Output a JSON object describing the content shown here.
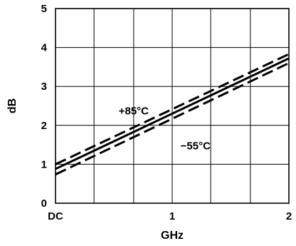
{
  "chart_data": {
    "type": "line",
    "xlabel": "GHz",
    "ylabel": "dB",
    "xlim": [
      0,
      2
    ],
    "ylim": [
      0,
      5
    ],
    "x_ticks": [
      {
        "value": 0,
        "label": "DC"
      },
      {
        "value": 1,
        "label": "1"
      },
      {
        "value": 2,
        "label": "2"
      }
    ],
    "y_ticks": [
      {
        "value": 0,
        "label": "0"
      },
      {
        "value": 1,
        "label": "1"
      },
      {
        "value": 2,
        "label": "2"
      },
      {
        "value": 3,
        "label": "3"
      },
      {
        "value": 4,
        "label": "4"
      },
      {
        "value": 5,
        "label": "5"
      }
    ],
    "grid": true,
    "x_gridlines": [
      0.33,
      0.67,
      1.0,
      1.33,
      1.67
    ],
    "y_gridlines": [
      1,
      2,
      3,
      4
    ],
    "series": [
      {
        "name": "+85°C",
        "style": "dashed",
        "x": [
          0,
          2
        ],
        "y": [
          1.0,
          3.83
        ]
      },
      {
        "name": "",
        "style": "solid",
        "x": [
          0,
          2
        ],
        "y": [
          0.88,
          3.72
        ]
      },
      {
        "name": "−55°C",
        "style": "dashed",
        "x": [
          0,
          2
        ],
        "y": [
          0.74,
          3.6
        ]
      }
    ],
    "annotations": [
      {
        "text": "+85°C",
        "x": 0.67,
        "y": 2.28
      },
      {
        "text": "−55°C",
        "x": 1.2,
        "y": 1.38
      }
    ]
  }
}
